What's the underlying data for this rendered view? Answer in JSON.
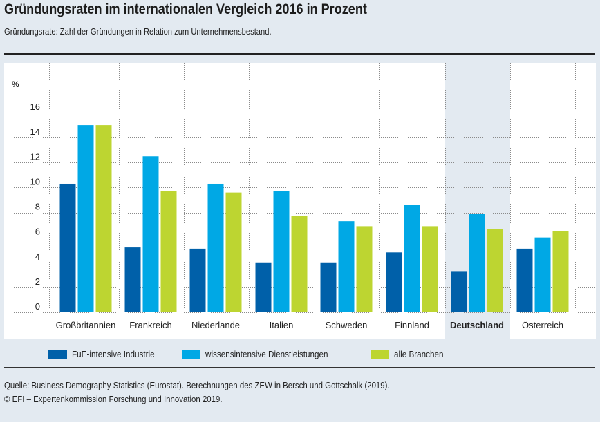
{
  "header": {
    "title": "Gründungsraten im internationalen Vergleich 2016 in Prozent",
    "subtitle": "Gründungsrate: Zahl der Gründungen in Relation zum Unternehmensbestand."
  },
  "chart_data": {
    "type": "bar",
    "title": "Gründungsraten im internationalen Vergleich 2016 in Prozent",
    "subtitle": "Gründungsrate: Zahl der Gründungen in Relation zum Unternehmensbestand.",
    "xlabel": "",
    "ylabel": "%",
    "ylim": [
      0,
      18
    ],
    "yticks": [
      0,
      2,
      4,
      6,
      8,
      10,
      12,
      14,
      16
    ],
    "grid": true,
    "legend_position": "bottom",
    "highlighted_category": "Deutschland",
    "categories": [
      "Großbritannien",
      "Frankreich",
      "Niederlande",
      "Italien",
      "Schweden",
      "Finnland",
      "Deutschland",
      "Österreich"
    ],
    "series": [
      {
        "name": "FuE-intensive Industrie",
        "color": "#0060a9",
        "values": [
          10.3,
          5.2,
          5.1,
          4.0,
          4.0,
          4.8,
          3.3,
          5.1
        ]
      },
      {
        "name": "wissensintensive Dienstleistungen",
        "color": "#00a8e5",
        "values": [
          15.0,
          12.5,
          10.3,
          9.7,
          7.3,
          8.6,
          7.9,
          6.0
        ]
      },
      {
        "name": "alle Branchen",
        "color": "#bdd531",
        "values": [
          15.0,
          9.7,
          9.6,
          7.7,
          6.9,
          6.9,
          6.7,
          6.5
        ]
      }
    ]
  },
  "legend": {
    "items": [
      {
        "label": "FuE-intensive Industrie",
        "color": "#0060a9"
      },
      {
        "label": "wissensintensive Dienstleistungen",
        "color": "#00a8e5"
      },
      {
        "label": "alle Branchen",
        "color": "#bdd531"
      }
    ]
  },
  "footer": {
    "source": "Quelle: Business Demography Statistics (Eurostat). Berechnungen des ZEW in Bersch und Gottschalk (2019).",
    "copyright": "© EFI – Expertenkommission Forschung und Innovation 2019."
  },
  "colors": {
    "background": "#e3eaf1",
    "plot_background": "#ffffff",
    "highlight_background": "#e3eaf1"
  }
}
